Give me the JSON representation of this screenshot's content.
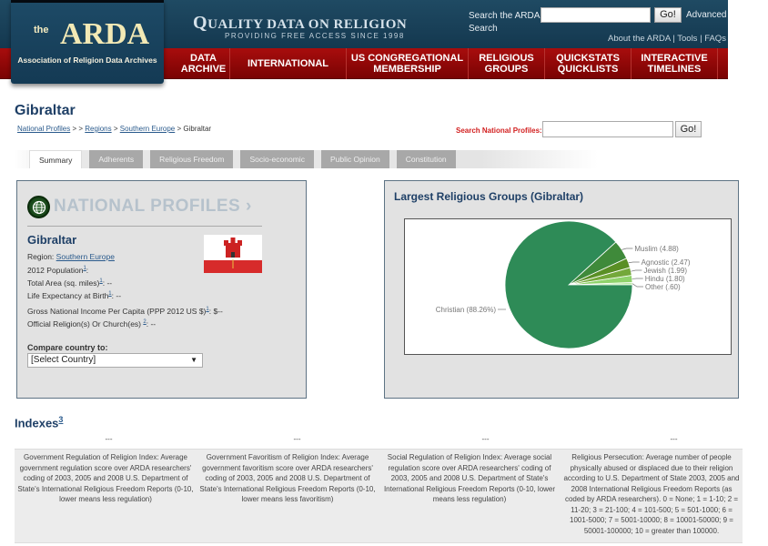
{
  "header": {
    "logo_the": "the",
    "logo_arda": "ARDA",
    "logo_sub": "Association of Religion Data Archives",
    "tagline_q": "Q",
    "tagline_rest": "UALITY DATA ON RELIGION",
    "tagline2": "PROVIDING FREE ACCESS SINCE 1998",
    "search_label": "Search the ARDA Search",
    "search_placeholder": "",
    "search_go": "Go!",
    "advanced": "Advanced",
    "links": [
      "About the ARDA",
      "Tools",
      "FAQs"
    ]
  },
  "nav": [
    {
      "label": "Data Archive",
      "width": 58
    },
    {
      "label": "International",
      "width": 128
    },
    {
      "label": "US Congregational Membership",
      "width": 134
    },
    {
      "label": "Religious Groups",
      "width": 84
    },
    {
      "label": "QuickStats QuickLists",
      "width": 95
    },
    {
      "label": "Interactive Timelines",
      "width": 95
    }
  ],
  "page": {
    "title": "Gibraltar",
    "breadcrumb": {
      "items": [
        "National Profiles",
        "Regions",
        "Southern Europe"
      ],
      "current": "Gibraltar",
      "sep1": " > > ",
      "sep": " > "
    },
    "np_search_label": "Search National Profiles:",
    "np_search_go": "Go!"
  },
  "tabs": [
    {
      "label": "Summary",
      "active": true
    },
    {
      "label": "Adherents"
    },
    {
      "label": "Religious Freedom"
    },
    {
      "label": "Socio-economic"
    },
    {
      "label": "Public Opinion"
    },
    {
      "label": "Constitution"
    }
  ],
  "profile": {
    "banner": "NATIONAL PROFILES",
    "banner_arrow": "›",
    "country": "Gibraltar",
    "region_label": "Region: ",
    "region": "Southern Europe",
    "population_label": "2012 Population",
    "population_note": "1",
    "population_value": ":",
    "area_label": "Total Area (sq. miles)",
    "area_note": "1",
    "area_value": ": --",
    "life_label": "Life Expectancy at Birth",
    "life_note": "1",
    "life_value": ": --",
    "gni_label": "Gross National Income Per Capita (PPP 2012 US $)",
    "gni_note": "1",
    "gni_value": ": $--",
    "official_label": "Official Religion(s) Or Church(es) ",
    "official_note": "2",
    "official_value": ": --",
    "compare_label": "Compare country to:",
    "compare_selected": "[Select Country]",
    "compare_arrow": "▼"
  },
  "chart_data": {
    "type": "pie",
    "title": "Largest Religious Groups (Gibraltar)",
    "categories": [
      "Christian",
      "Muslim",
      "Agnostic",
      "Jewish",
      "Hindu",
      "Other"
    ],
    "values": [
      88.26,
      4.88,
      2.47,
      1.99,
      1.8,
      0.6
    ],
    "labels": [
      "Christian (88.26%)",
      "Muslim (4.88)",
      "Agnostic (2.47)",
      "Jewish (1.99)",
      "Hindu (1.80)",
      "Other (.60)"
    ],
    "colors": [
      "#2e8b57",
      "#3f8a3a",
      "#5a8f25",
      "#74a83a",
      "#8fd26b",
      "#b9eca4"
    ],
    "legend": "none"
  },
  "indexes": {
    "title": "Indexes",
    "note": "3",
    "values": [
      "---",
      "---",
      "---",
      "---"
    ],
    "descriptions": [
      "Government Regulation of Religion Index: Average government regulation score over ARDA researchers' coding of 2003, 2005 and 2008 U.S. Department of State's International Religious Freedom Reports (0-10, lower means less regulation)",
      "Government Favoritism of Religion Index: Average government favoritism score over ARDA researchers' coding of 2003, 2005 and 2008 U.S. Department of State's International Religious Freedom Reports (0-10, lower means less favoritism)",
      "Social Regulation of Religion Index: Average social regulation score over ARDA researchers' coding of 2003, 2005 and 2008 U.S. Department of State's International Religious Freedom Reports (0-10, lower means less regulation)",
      "Religious Persecution: Average number of people physically abused or displaced due to their religion according to U.S. Department of State 2003, 2005 and 2008 International Religious Freedom Reports (as coded by ARDA researchers). 0 = None; 1 = 1-10; 2 = 11-20; 3 = 21-100; 4 = 101-500; 5 = 501-1000; 6 = 1001-5000; 7 = 5001-10000; 8 = 10001-50000; 9 = 50001-100000; 10 = greater than 100000."
    ]
  }
}
